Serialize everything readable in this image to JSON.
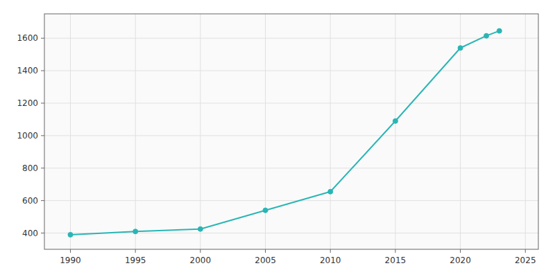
{
  "chart_data": {
    "type": "line",
    "x": [
      1990,
      1995,
      2000,
      2005,
      2010,
      2015,
      2020,
      2022,
      2023
    ],
    "values": [
      390,
      410,
      425,
      540,
      655,
      1090,
      1540,
      1615,
      1645
    ],
    "color": "#2ab5b5",
    "marker": "circle",
    "xlim": [
      1988,
      2026
    ],
    "ylim": [
      300,
      1750
    ],
    "xticks": [
      1990,
      1995,
      2000,
      2005,
      2010,
      2015,
      2020,
      2025
    ],
    "yticks": [
      400,
      600,
      800,
      1000,
      1200,
      1400,
      1600
    ],
    "grid": true
  }
}
